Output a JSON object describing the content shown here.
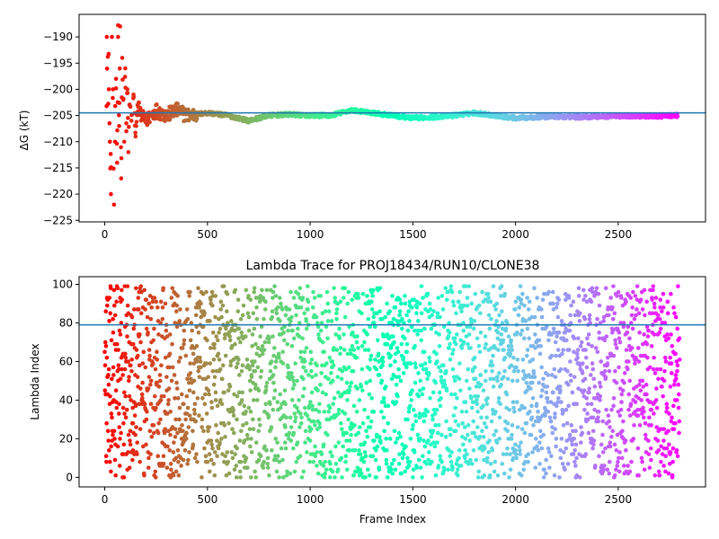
{
  "chart_data": [
    {
      "type": "scatter",
      "title": "",
      "xlabel": "",
      "ylabel": "ΔG (kT)",
      "xlim": [
        -125,
        2925
      ],
      "ylim": [
        -225.3,
        -185.7
      ],
      "xticks": [
        0,
        500,
        1000,
        1500,
        2000,
        2500
      ],
      "xtick_labels": [
        "0",
        "500",
        "1000",
        "1500",
        "2000",
        "2500"
      ],
      "yticks": [
        -190,
        -195,
        -200,
        -205,
        -210,
        -215,
        -220,
        -225
      ],
      "ytick_labels": [
        "−190",
        "−195",
        "−200",
        "−205",
        "−210",
        "−215",
        "−220",
        "−225"
      ],
      "hline": -204.5,
      "hline_color": "#1f77b4",
      "colormap": "rainbow (red at frame 0 → violet at frame 2800)",
      "grid": false,
      "series_points": [
        [
          10,
          -190
        ],
        [
          20,
          -200
        ],
        [
          25,
          -210
        ],
        [
          30,
          -220
        ],
        [
          35,
          -190
        ],
        [
          40,
          -200
        ],
        [
          45,
          -222
        ],
        [
          50,
          -210
        ],
        [
          55,
          -198
        ],
        [
          60,
          -214
        ],
        [
          65,
          -190
        ],
        [
          70,
          -207
        ],
        [
          75,
          -188
        ],
        [
          80,
          -217
        ],
        [
          85,
          -194
        ],
        [
          90,
          -202
        ],
        [
          95,
          -210
        ],
        [
          100,
          -196
        ],
        [
          105,
          -208
        ],
        [
          110,
          -200
        ],
        [
          115,
          -212
        ],
        [
          120,
          -203
        ],
        [
          130,
          -206
        ],
        [
          140,
          -201
        ],
        [
          150,
          -209
        ],
        [
          160,
          -203
        ],
        [
          175,
          -205
        ],
        [
          200,
          -206
        ],
        [
          250,
          -204
        ],
        [
          300,
          -205
        ],
        [
          350,
          -204
        ],
        [
          400,
          -205
        ],
        [
          500,
          -204.5
        ],
        [
          600,
          -205
        ],
        [
          700,
          -206
        ],
        [
          800,
          -205
        ],
        [
          900,
          -204.8
        ],
        [
          1000,
          -205
        ],
        [
          1100,
          -205
        ],
        [
          1200,
          -204
        ],
        [
          1300,
          -204.5
        ],
        [
          1400,
          -205
        ],
        [
          1500,
          -205.5
        ],
        [
          1600,
          -205.3
        ],
        [
          1700,
          -205
        ],
        [
          1800,
          -204.5
        ],
        [
          1900,
          -205
        ],
        [
          2000,
          -205.5
        ],
        [
          2100,
          -205.3
        ],
        [
          2200,
          -205.2
        ],
        [
          2300,
          -205.3
        ],
        [
          2400,
          -205.2
        ],
        [
          2500,
          -205.1
        ],
        [
          2600,
          -205.1
        ],
        [
          2700,
          -205.1
        ],
        [
          2790,
          -205
        ]
      ]
    },
    {
      "type": "scatter",
      "title": "Lambda Trace for PROJ18434/RUN10/CLONE38",
      "xlabel": "Frame Index",
      "ylabel": "Lambda Index",
      "xlim": [
        -125,
        2925
      ],
      "ylim": [
        -4.95,
        103.95
      ],
      "xticks": [
        0,
        500,
        1000,
        1500,
        2000,
        2500
      ],
      "xtick_labels": [
        "0",
        "500",
        "1000",
        "1500",
        "2000",
        "2500"
      ],
      "yticks": [
        0,
        20,
        40,
        60,
        80,
        100
      ],
      "ytick_labels": [
        "0",
        "20",
        "40",
        "60",
        "80",
        "100"
      ],
      "hline": 79,
      "hline_color": "#1f77b4",
      "colormap": "rainbow (red at frame 0 → violet at frame 2800)",
      "grid": false,
      "frames": 2800,
      "lambda_range": [
        0,
        99
      ]
    }
  ]
}
